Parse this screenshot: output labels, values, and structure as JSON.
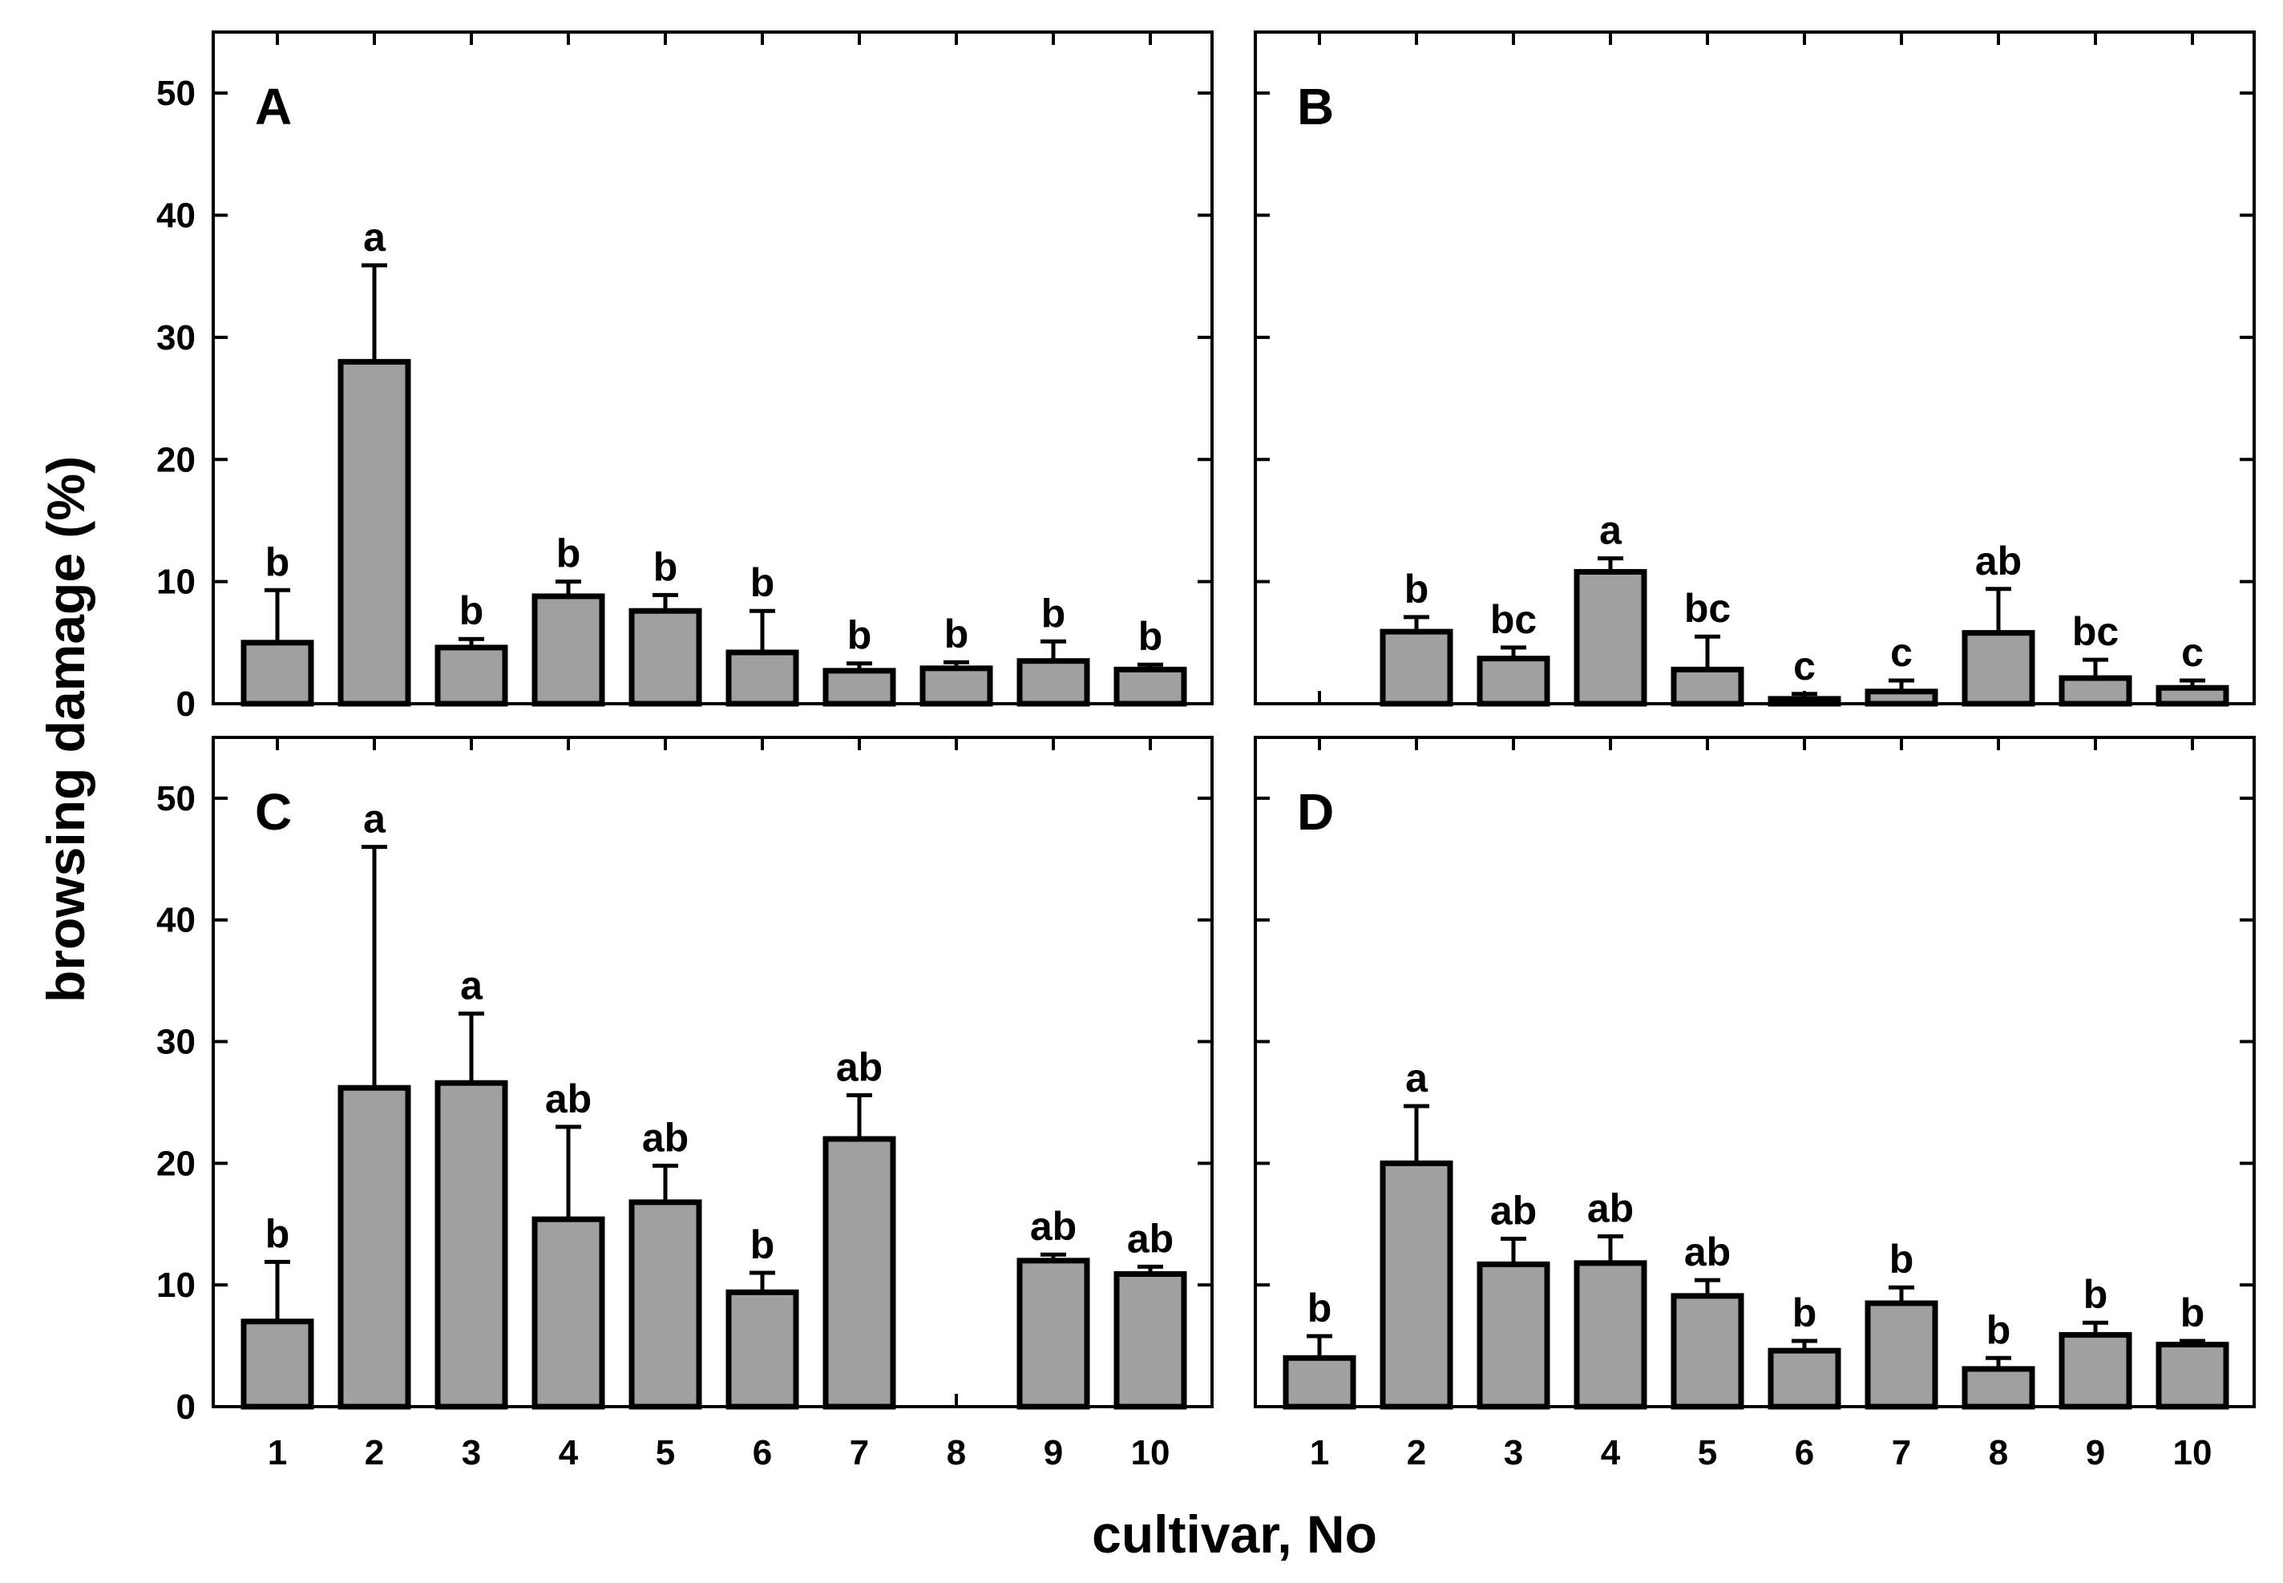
{
  "chart_data": {
    "type": "bar",
    "title": "",
    "ylabel": "browsing damage  (%)",
    "xlabel": "cultivar, No",
    "ylim": [
      0,
      55
    ],
    "yticks": [
      "0",
      "10",
      "20",
      "30",
      "40",
      "50"
    ],
    "categories": [
      "1",
      "2",
      "3",
      "4",
      "5",
      "6",
      "7",
      "8",
      "9",
      "10"
    ],
    "panels": [
      {
        "label": "A",
        "values": [
          5.0,
          28.0,
          4.6,
          8.8,
          7.6,
          4.2,
          2.7,
          2.9,
          3.5,
          2.8
        ],
        "errors": [
          4.3,
          7.9,
          0.7,
          1.2,
          1.3,
          3.4,
          0.6,
          0.5,
          1.6,
          0.4
        ],
        "letters": [
          "b",
          "a",
          "b",
          "b",
          "b",
          "b",
          "b",
          "b",
          "b",
          "b"
        ]
      },
      {
        "label": "B",
        "values": [
          0.0,
          5.9,
          3.7,
          10.8,
          2.8,
          0.4,
          1.0,
          5.8,
          2.1,
          1.3
        ],
        "errors": [
          0.0,
          1.2,
          0.9,
          1.1,
          2.7,
          0.4,
          0.9,
          3.6,
          1.5,
          0.6
        ],
        "letters": [
          "",
          "b",
          "bc",
          "a",
          "bc",
          "c",
          "c",
          "ab",
          "bc",
          "c"
        ]
      },
      {
        "label": "C",
        "values": [
          7.0,
          26.2,
          26.6,
          15.4,
          16.8,
          9.4,
          22.0,
          0.0,
          12.0,
          10.9
        ],
        "errors": [
          4.9,
          19.8,
          5.7,
          7.6,
          3.0,
          1.6,
          3.6,
          0.0,
          0.5,
          0.6
        ],
        "letters": [
          "b",
          "a",
          "a",
          "ab",
          "ab",
          "b",
          "ab",
          "",
          "ab",
          "ab"
        ]
      },
      {
        "label": "D",
        "values": [
          4.0,
          20.0,
          11.7,
          11.8,
          9.1,
          4.6,
          8.5,
          3.1,
          5.9,
          5.1
        ],
        "errors": [
          1.8,
          4.7,
          2.1,
          2.2,
          1.3,
          0.8,
          1.3,
          0.9,
          1.0,
          0.3
        ],
        "letters": [
          "b",
          "a",
          "ab",
          "ab",
          "ab",
          "b",
          "b",
          "b",
          "b",
          "b"
        ]
      }
    ]
  }
}
